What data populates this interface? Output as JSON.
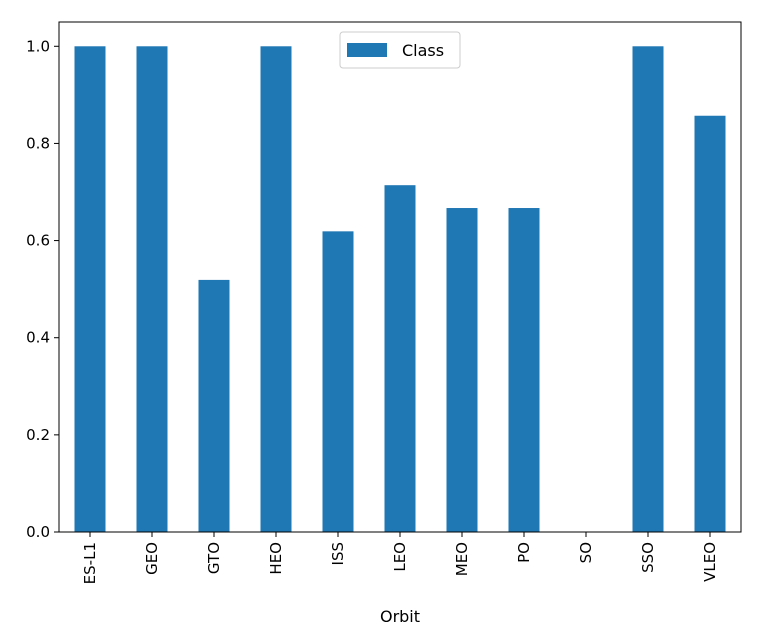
{
  "chart_data": {
    "type": "bar",
    "categories": [
      "ES-L1",
      "GEO",
      "GTO",
      "HEO",
      "ISS",
      "LEO",
      "MEO",
      "PO",
      "SO",
      "SSO",
      "VLEO"
    ],
    "series": [
      {
        "name": "Class",
        "values": [
          1.0,
          1.0,
          0.519,
          1.0,
          0.619,
          0.714,
          0.667,
          0.667,
          0.0,
          1.0,
          0.857
        ]
      }
    ],
    "title": "",
    "xlabel": "Orbit",
    "ylabel": "",
    "ylim": [
      0,
      1.05
    ],
    "yticks": [
      "0.0",
      "0.2",
      "0.4",
      "0.6",
      "0.8",
      "1.0"
    ],
    "grid": false,
    "legend": "top-center",
    "colors": {
      "bar": "#1f77b4",
      "axis": "#000000",
      "background": "#ffffff",
      "legend_border": "#cccccc"
    }
  }
}
